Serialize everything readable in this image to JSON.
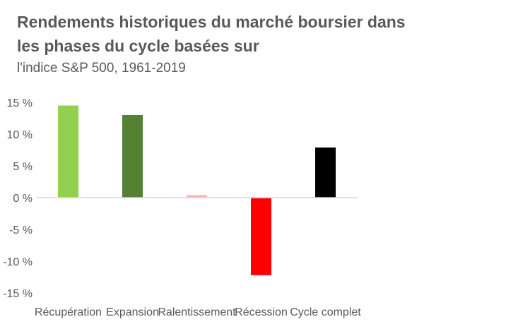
{
  "chart_data": {
    "type": "bar",
    "title": "Rendements historiques du marché boursier dans les phases du cycle basées sur",
    "subtitle": "l'indice S&P 500, 1961-2019",
    "categories": [
      "Récupération",
      "Expansion",
      "Ralentissement",
      "Récession",
      "Cycle complet"
    ],
    "values": [
      14.5,
      13.0,
      0.4,
      -12.2,
      7.9
    ],
    "unit": "%",
    "colors": [
      "#92d050",
      "#548235",
      "#ffb3b3",
      "#ff0000",
      "#000000"
    ],
    "ylim": [
      -15,
      15
    ],
    "yticks": [
      15,
      10,
      5,
      0,
      -5,
      -10,
      -15
    ],
    "ytick_labels": [
      "15 %",
      "10 %",
      "5 %",
      "0 %",
      "-5 %",
      "-10 %",
      "-15 %"
    ],
    "xlabel": "",
    "ylabel": "",
    "grid": false,
    "legend": "none"
  }
}
